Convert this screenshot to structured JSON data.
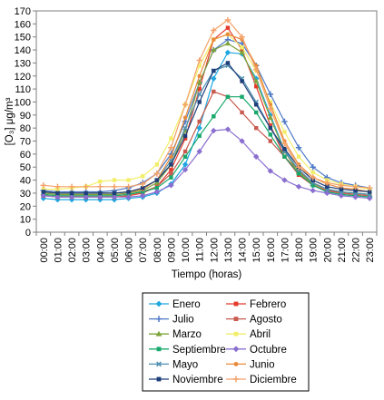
{
  "chart_data": {
    "type": "line",
    "xlabel": "Tiempo (horas)",
    "ylabel": "[O₃] μg/m³",
    "ylim": [
      0,
      170
    ],
    "ytick_step": 10,
    "grid": false,
    "legend_position": "bottom",
    "categories": [
      "00:00",
      "01:00",
      "02:00",
      "03:00",
      "04:00",
      "05:00",
      "06:00",
      "07:00",
      "08:00",
      "09:00",
      "10:00",
      "11:00",
      "12:00",
      "13:00",
      "14:00",
      "15:00",
      "16:00",
      "17:00",
      "18:00",
      "19:00",
      "20:00",
      "21:00",
      "22:00",
      "23:00"
    ],
    "series": [
      {
        "name": "Enero",
        "color": "#1ea7e0",
        "marker": "diamond",
        "values": [
          26,
          25,
          25,
          25,
          25,
          25,
          26,
          27,
          30,
          37,
          52,
          80,
          118,
          138,
          137,
          118,
          90,
          63,
          47,
          36,
          31,
          29,
          28,
          27
        ]
      },
      {
        "name": "Febrero",
        "color": "#e53b2c",
        "marker": "square",
        "values": [
          28,
          27,
          27,
          27,
          27,
          27,
          28,
          30,
          35,
          48,
          72,
          110,
          148,
          157,
          140,
          112,
          82,
          58,
          44,
          36,
          32,
          30,
          29,
          28
        ]
      },
      {
        "name": "Julio",
        "color": "#4d79c7",
        "marker": "plus",
        "values": [
          32,
          31,
          31,
          31,
          31,
          32,
          34,
          38,
          45,
          60,
          85,
          115,
          140,
          148,
          145,
          128,
          106,
          85,
          65,
          50,
          42,
          38,
          36,
          34
        ]
      },
      {
        "name": "Agosto",
        "color": "#c85a4e",
        "marker": "square",
        "values": [
          29,
          28,
          28,
          28,
          28,
          28,
          29,
          31,
          35,
          45,
          62,
          85,
          108,
          104,
          92,
          80,
          70,
          58,
          47,
          38,
          33,
          30,
          29,
          28
        ]
      },
      {
        "name": "Marzo",
        "color": "#7ea33a",
        "marker": "tri",
        "values": [
          30,
          29,
          29,
          29,
          29,
          29,
          30,
          32,
          38,
          52,
          78,
          115,
          140,
          145,
          138,
          116,
          88,
          62,
          46,
          37,
          33,
          31,
          30,
          29
        ]
      },
      {
        "name": "Abril",
        "color": "#f2ee6a",
        "marker": "square",
        "values": [
          33,
          33,
          34,
          35,
          39,
          40,
          40,
          43,
          52,
          72,
          98,
          128,
          148,
          152,
          142,
          124,
          100,
          77,
          58,
          46,
          40,
          37,
          35,
          33
        ]
      },
      {
        "name": "Septiembre",
        "color": "#19a86b",
        "marker": "square",
        "values": [
          29,
          28,
          28,
          28,
          28,
          28,
          29,
          31,
          34,
          42,
          58,
          74,
          89,
          104,
          104,
          92,
          75,
          58,
          45,
          36,
          31,
          29,
          28,
          27
        ]
      },
      {
        "name": "Octubre",
        "color": "#8a6fcf",
        "marker": "diamond",
        "values": [
          28,
          27,
          27,
          27,
          27,
          27,
          27,
          28,
          31,
          36,
          48,
          62,
          78,
          79,
          70,
          58,
          47,
          40,
          35,
          32,
          30,
          28,
          27,
          26
        ]
      },
      {
        "name": "Mayo",
        "color": "#4d8fb0",
        "marker": "x",
        "values": [
          31,
          30,
          30,
          30,
          30,
          30,
          31,
          33,
          40,
          55,
          80,
          106,
          124,
          128,
          118,
          100,
          80,
          62,
          48,
          38,
          33,
          31,
          30,
          29
        ]
      },
      {
        "name": "Junio",
        "color": "#e8893a",
        "marker": "circle",
        "values": [
          31,
          30,
          30,
          30,
          30,
          30,
          31,
          33,
          40,
          58,
          88,
          120,
          148,
          152,
          148,
          128,
          98,
          70,
          52,
          42,
          37,
          34,
          33,
          31
        ]
      },
      {
        "name": "Noviembre",
        "color": "#1f3f7a",
        "marker": "square",
        "values": [
          31,
          30,
          30,
          30,
          30,
          30,
          31,
          34,
          40,
          52,
          74,
          100,
          124,
          130,
          116,
          98,
          80,
          64,
          50,
          40,
          35,
          33,
          32,
          31
        ]
      },
      {
        "name": "Diciembre",
        "color": "#f4a26a",
        "marker": "plus",
        "values": [
          36,
          35,
          35,
          35,
          35,
          35,
          35,
          37,
          45,
          65,
          98,
          132,
          155,
          163,
          150,
          125,
          95,
          68,
          50,
          42,
          38,
          36,
          35,
          34
        ]
      }
    ]
  }
}
